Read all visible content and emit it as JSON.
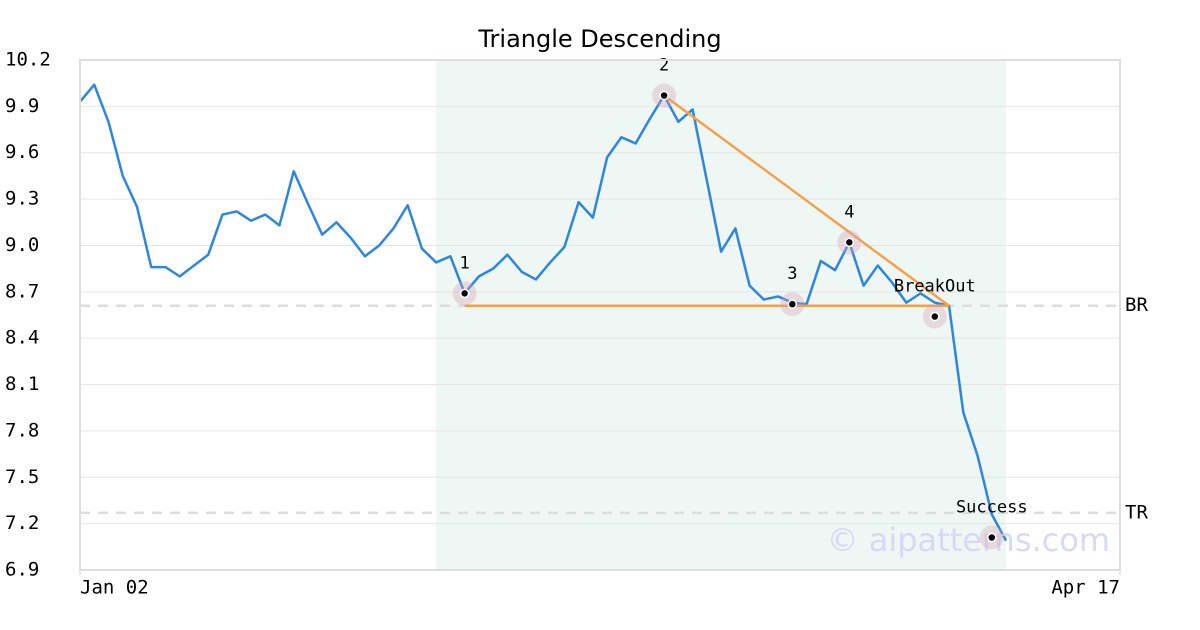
{
  "chart_data": {
    "type": "line",
    "title": "Triangle Descending",
    "watermark": "© aipatterns.com",
    "series": [
      {
        "color": "#2e86de",
        "x": [
          0,
          1,
          2,
          3,
          4,
          5,
          6,
          7,
          8,
          9,
          10,
          11,
          12,
          13,
          14,
          15,
          16,
          17,
          18,
          19,
          20,
          21,
          22,
          23,
          24,
          25,
          26,
          27,
          28,
          29,
          30,
          31,
          32,
          33,
          34,
          35,
          36,
          37,
          38,
          39,
          40,
          41,
          42,
          43,
          44,
          45,
          46,
          47,
          48,
          49,
          50,
          51,
          52,
          53,
          54,
          55,
          56,
          57,
          58,
          59,
          60,
          61,
          62,
          63,
          64,
          65
        ],
        "values": [
          9.93,
          10.04,
          9.8,
          9.45,
          9.25,
          8.86,
          8.86,
          8.8,
          8.87,
          8.94,
          9.2,
          9.22,
          9.16,
          9.2,
          9.13,
          9.48,
          9.27,
          9.07,
          9.15,
          9.05,
          8.93,
          9.0,
          9.11,
          9.26,
          8.98,
          8.89,
          8.93,
          8.69,
          8.8,
          8.85,
          8.94,
          8.83,
          8.78,
          8.89,
          8.99,
          9.28,
          9.18,
          9.57,
          9.7,
          9.66,
          9.82,
          9.97,
          9.8,
          9.88,
          9.42,
          8.96,
          9.11,
          8.74,
          8.65,
          8.67,
          8.63,
          8.62,
          8.9,
          8.84,
          9.02,
          8.74,
          8.87,
          8.76,
          8.63,
          8.69,
          8.63,
          8.61,
          7.92,
          7.64,
          7.26,
          7.09
        ]
      }
    ],
    "pattern_points": {
      "labels": [
        "1",
        "2",
        "3",
        "4",
        "BreakOut",
        "Success"
      ],
      "x": [
        27,
        41,
        50,
        54,
        60,
        64
      ],
      "values": [
        8.69,
        9.97,
        8.62,
        9.02,
        8.54,
        7.11
      ]
    },
    "pattern_lines": {
      "color": "#f5a04a",
      "lines": [
        {
          "x": [
            27,
            61
          ],
          "values": [
            8.61,
            8.61
          ]
        },
        {
          "x": [
            41,
            61
          ],
          "values": [
            9.97,
            8.61
          ]
        }
      ]
    },
    "ref_lines": [
      {
        "label": "BR",
        "value": 8.61
      },
      {
        "label": "TR",
        "value": 7.27
      }
    ],
    "shaded_range": [
      25,
      65
    ],
    "xlim": [
      0,
      73
    ],
    "xticks": [
      {
        "value": 0,
        "label": "Jan 02"
      },
      {
        "value": 73,
        "label": "Apr 17"
      }
    ],
    "ylim": [
      6.9,
      10.2
    ],
    "yticks": [
      6.9,
      7.2,
      7.5,
      7.8,
      8.1,
      8.4,
      8.7,
      {
        "value": 9,
        "label": "9.0"
      },
      9.3,
      9.6,
      9.9,
      10.2
    ],
    "grid": true
  }
}
